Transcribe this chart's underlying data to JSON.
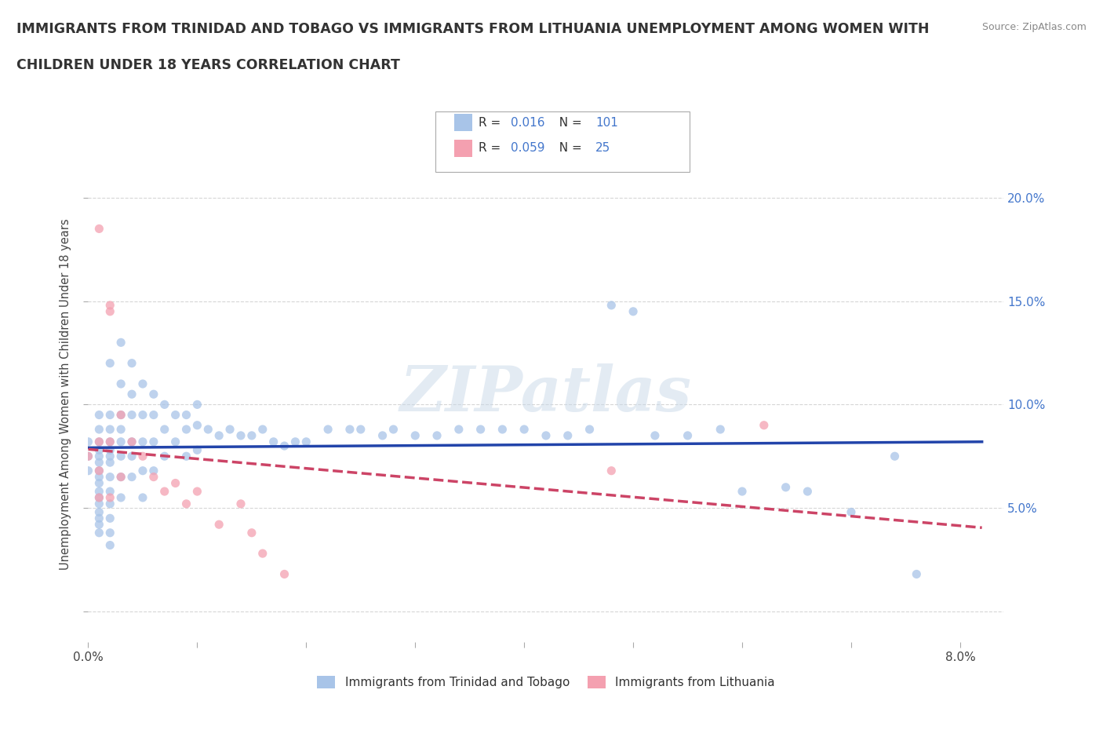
{
  "title_line1": "IMMIGRANTS FROM TRINIDAD AND TOBAGO VS IMMIGRANTS FROM LITHUANIA UNEMPLOYMENT AMONG WOMEN WITH",
  "title_line2": "CHILDREN UNDER 18 YEARS CORRELATION CHART",
  "source": "Source: ZipAtlas.com",
  "ylabel": "Unemployment Among Women with Children Under 18 years",
  "legend_label1": "Immigrants from Trinidad and Tobago",
  "legend_label2": "Immigrants from Lithuania",
  "R1": 0.016,
  "N1": 101,
  "R2": 0.059,
  "N2": 25,
  "color1": "#a8c4e8",
  "color2": "#f4a0b0",
  "trendline1_color": "#2244aa",
  "trendline2_color": "#cc4466",
  "watermark": "ZIPatlas",
  "xlim": [
    0.0,
    0.084
  ],
  "ylim": [
    -0.015,
    0.225
  ],
  "x_ticks": [
    0.0,
    0.01,
    0.02,
    0.03,
    0.04,
    0.05,
    0.06,
    0.07,
    0.08
  ],
  "y_ticks": [
    0.0,
    0.05,
    0.1,
    0.15,
    0.2
  ],
  "background_color": "#ffffff",
  "grid_color": "#cccccc",
  "scatter1_x": [
    0.0,
    0.0,
    0.0,
    0.001,
    0.001,
    0.001,
    0.001,
    0.001,
    0.001,
    0.001,
    0.001,
    0.001,
    0.001,
    0.001,
    0.001,
    0.001,
    0.001,
    0.001,
    0.001,
    0.002,
    0.002,
    0.002,
    0.002,
    0.002,
    0.002,
    0.002,
    0.002,
    0.002,
    0.002,
    0.002,
    0.002,
    0.002,
    0.003,
    0.003,
    0.003,
    0.003,
    0.003,
    0.003,
    0.003,
    0.003,
    0.004,
    0.004,
    0.004,
    0.004,
    0.004,
    0.004,
    0.005,
    0.005,
    0.005,
    0.005,
    0.005,
    0.006,
    0.006,
    0.006,
    0.006,
    0.007,
    0.007,
    0.007,
    0.008,
    0.008,
    0.009,
    0.009,
    0.009,
    0.01,
    0.01,
    0.01,
    0.011,
    0.012,
    0.013,
    0.014,
    0.015,
    0.016,
    0.017,
    0.018,
    0.019,
    0.02,
    0.022,
    0.024,
    0.025,
    0.027,
    0.028,
    0.03,
    0.032,
    0.034,
    0.036,
    0.038,
    0.04,
    0.042,
    0.044,
    0.046,
    0.048,
    0.05,
    0.052,
    0.055,
    0.058,
    0.06,
    0.064,
    0.066,
    0.07,
    0.074,
    0.076
  ],
  "scatter1_y": [
    0.082,
    0.075,
    0.068,
    0.095,
    0.088,
    0.082,
    0.078,
    0.075,
    0.072,
    0.068,
    0.065,
    0.062,
    0.058,
    0.055,
    0.052,
    0.048,
    0.045,
    0.042,
    0.038,
    0.12,
    0.095,
    0.088,
    0.082,
    0.078,
    0.075,
    0.072,
    0.065,
    0.058,
    0.052,
    0.045,
    0.038,
    0.032,
    0.13,
    0.11,
    0.095,
    0.088,
    0.082,
    0.075,
    0.065,
    0.055,
    0.12,
    0.105,
    0.095,
    0.082,
    0.075,
    0.065,
    0.11,
    0.095,
    0.082,
    0.068,
    0.055,
    0.105,
    0.095,
    0.082,
    0.068,
    0.1,
    0.088,
    0.075,
    0.095,
    0.082,
    0.095,
    0.088,
    0.075,
    0.1,
    0.09,
    0.078,
    0.088,
    0.085,
    0.088,
    0.085,
    0.085,
    0.088,
    0.082,
    0.08,
    0.082,
    0.082,
    0.088,
    0.088,
    0.088,
    0.085,
    0.088,
    0.085,
    0.085,
    0.088,
    0.088,
    0.088,
    0.088,
    0.085,
    0.085,
    0.088,
    0.148,
    0.145,
    0.085,
    0.085,
    0.088,
    0.058,
    0.06,
    0.058,
    0.048,
    0.075,
    0.018
  ],
  "scatter2_x": [
    0.0,
    0.001,
    0.001,
    0.001,
    0.001,
    0.002,
    0.002,
    0.002,
    0.002,
    0.003,
    0.003,
    0.004,
    0.005,
    0.006,
    0.007,
    0.008,
    0.009,
    0.01,
    0.012,
    0.014,
    0.015,
    0.016,
    0.018,
    0.048,
    0.062
  ],
  "scatter2_y": [
    0.075,
    0.185,
    0.082,
    0.068,
    0.055,
    0.148,
    0.145,
    0.082,
    0.055,
    0.095,
    0.065,
    0.082,
    0.075,
    0.065,
    0.058,
    0.062,
    0.052,
    0.058,
    0.042,
    0.052,
    0.038,
    0.028,
    0.018,
    0.068,
    0.09
  ]
}
